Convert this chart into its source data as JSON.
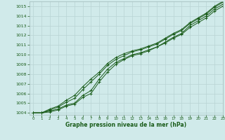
{
  "title": "Graphe pression niveau de la mer (hPa)",
  "background_color": "#d0eaea",
  "grid_color": "#b8d4d4",
  "line_color": "#1a5c1a",
  "xlim": [
    -0.5,
    23
  ],
  "ylim": [
    1003.8,
    1015.5
  ],
  "yticks": [
    1004,
    1005,
    1006,
    1007,
    1008,
    1009,
    1010,
    1011,
    1012,
    1013,
    1014,
    1015
  ],
  "xticks": [
    0,
    1,
    2,
    3,
    4,
    5,
    6,
    7,
    8,
    9,
    10,
    11,
    12,
    13,
    14,
    15,
    16,
    17,
    18,
    19,
    20,
    21,
    22,
    23
  ],
  "series": [
    [
      1004.0,
      1004.0,
      1004.2,
      1004.4,
      1004.8,
      1005.0,
      1005.8,
      1006.3,
      1007.5,
      1008.5,
      1009.2,
      1009.6,
      1010.0,
      1010.2,
      1010.5,
      1010.8,
      1011.3,
      1011.8,
      1012.2,
      1013.0,
      1013.5,
      1014.0,
      1014.7,
      1015.2
    ],
    [
      1004.0,
      1004.0,
      1004.1,
      1004.3,
      1004.7,
      1004.9,
      1005.6,
      1006.0,
      1007.2,
      1008.2,
      1009.0,
      1009.5,
      1009.9,
      1010.1,
      1010.4,
      1010.8,
      1011.2,
      1011.7,
      1012.1,
      1012.8,
      1013.3,
      1013.8,
      1014.5,
      1015.0
    ],
    [
      1004.0,
      1004.0,
      1004.3,
      1004.6,
      1005.1,
      1005.5,
      1006.4,
      1007.2,
      1008.0,
      1008.9,
      1009.5,
      1009.9,
      1010.3,
      1010.5,
      1010.8,
      1011.1,
      1011.6,
      1012.1,
      1012.5,
      1013.2,
      1013.7,
      1014.2,
      1014.9,
      1015.4
    ],
    [
      1004.0,
      1004.0,
      1004.4,
      1004.7,
      1005.3,
      1005.8,
      1006.7,
      1007.5,
      1008.2,
      1009.1,
      1009.7,
      1010.1,
      1010.4,
      1010.6,
      1010.9,
      1011.2,
      1011.7,
      1012.2,
      1012.6,
      1013.3,
      1013.8,
      1014.3,
      1015.0,
      1015.5
    ]
  ]
}
